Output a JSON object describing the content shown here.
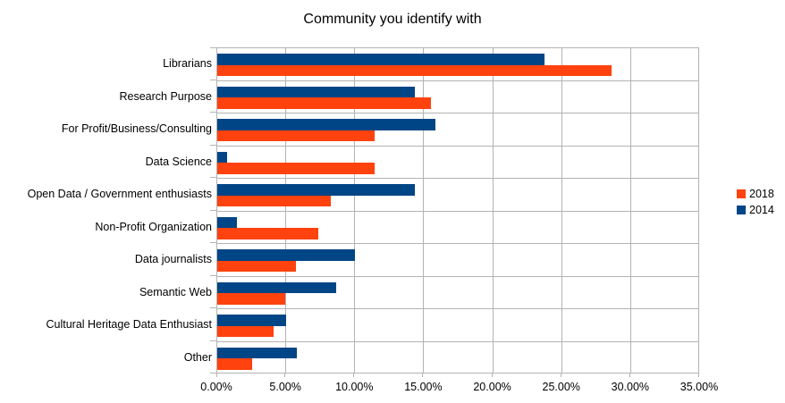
{
  "chart_data": {
    "type": "bar",
    "orientation": "horizontal",
    "title": "Community you identify with",
    "categories": [
      "Librarians",
      "Research Purpose",
      "For Profit/Business/Consulting",
      "Data Science",
      "Open Data / Government enthusiasts",
      "Non-Profit Organization",
      "Data journalists",
      "Semantic Web",
      "Cultural Heritage Data Enthusiast",
      "Other"
    ],
    "series": [
      {
        "name": "2018",
        "color": "#ff420e",
        "values": [
          28.6,
          15.5,
          11.4,
          11.4,
          8.2,
          7.3,
          5.7,
          4.9,
          4.1,
          2.5
        ]
      },
      {
        "name": "2014",
        "color": "#004586",
        "values": [
          23.7,
          14.3,
          15.8,
          0.7,
          14.3,
          1.4,
          10.0,
          8.6,
          5.0,
          5.8
        ]
      }
    ],
    "x_axis": {
      "min": 0,
      "max": 35,
      "step": 5,
      "tick_labels": [
        "0.00%",
        "5.00%",
        "10.00%",
        "15.00%",
        "20.00%",
        "25.00%",
        "30.00%",
        "35.00%"
      ]
    },
    "legend_position": "right",
    "grid": true,
    "gridline_color": "#b3b3b3",
    "row_order_note": "within each category row the 2014 bar is drawn above the 2018 bar"
  }
}
